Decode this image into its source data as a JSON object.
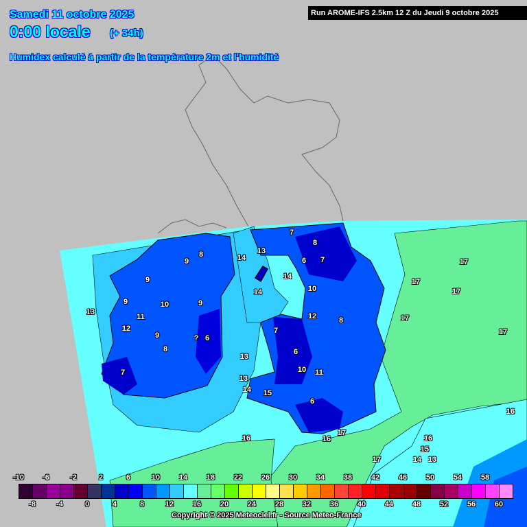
{
  "header": {
    "date": "Samedi 11 octobre 2025",
    "time": "0:00 locale",
    "lead": "(+ 34h)",
    "subtitle": "Humidex calculé à partir de la température 2m et l'humidité",
    "run": "Run AROME-IFS 2.5km 12 Z du Jeudi 9 octobre 2025"
  },
  "map_labels": [
    "7",
    "8",
    "13",
    "14",
    "9",
    "8",
    "6",
    "7",
    "14",
    "9",
    "14",
    "10",
    "9",
    "10",
    "9",
    "13",
    "11",
    "12",
    "12",
    "9",
    "?",
    "6",
    "8",
    "7",
    "8",
    "13",
    "7",
    "6",
    "10",
    "11",
    "13",
    "14",
    "15",
    "6",
    "16",
    "16",
    "17",
    "17",
    "17",
    "17",
    "17",
    "17",
    "16",
    "16",
    "15",
    "14",
    "13",
    "17"
  ],
  "legend": {
    "colors": [
      "#330033",
      "#660066",
      "#990099",
      "#880088",
      "#660033",
      "#333366",
      "#003399",
      "#0000cc",
      "#0000ff",
      "#0055ff",
      "#0099ff",
      "#33ccff",
      "#66ffff",
      "#66ee99",
      "#66ff66",
      "#66ff00",
      "#ccff00",
      "#ffff00",
      "#ffff88",
      "#ffe050",
      "#ffcc00",
      "#ff9900",
      "#ff6600",
      "#ff4433",
      "#ff2222",
      "#ff0000",
      "#dd0000",
      "#aa0000",
      "#990000",
      "#660000",
      "#880044",
      "#aa0066",
      "#cc00cc",
      "#ff00ff",
      "#ff44ff",
      "#ff88ff"
    ],
    "top_ticks": [
      "-10",
      "-6",
      "-2",
      "2",
      "6",
      "10",
      "14",
      "18",
      "22",
      "26",
      "30",
      "34",
      "38",
      "42",
      "46",
      "50",
      "54",
      "58"
    ],
    "bottom_ticks": [
      "-8",
      "-4",
      "0",
      "4",
      "8",
      "12",
      "16",
      "20",
      "24",
      "28",
      "32",
      "36",
      "40",
      "44",
      "48",
      "52",
      "56",
      "60"
    ]
  },
  "copyright": "Copyright © 2025 Meteociel.fr - Source Meteo-France",
  "colors": {
    "background": "#c0c0c0",
    "sea": "#66ffff",
    "title": "#00ffff"
  }
}
